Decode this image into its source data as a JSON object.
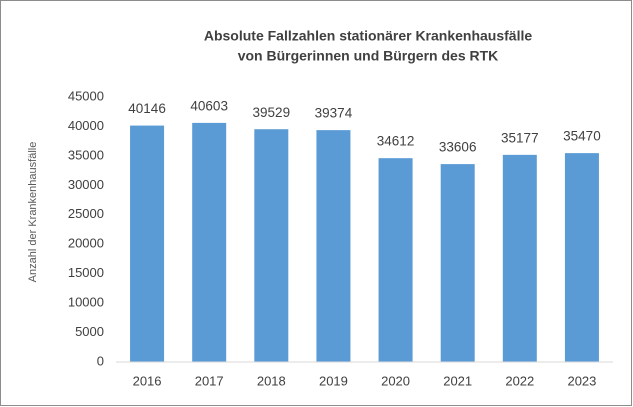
{
  "chart_data": {
    "type": "bar",
    "title": [
      "Absolute Fallzahlen stationärer Krankenhausfälle",
      "von Bürgerinnen und Bürgern des RTK"
    ],
    "y_label": "Anzahl der Krankenhausfälle",
    "categories": [
      "2016",
      "2017",
      "2018",
      "2019",
      "2020",
      "2021",
      "2022",
      "2023"
    ],
    "values": [
      40146,
      40603,
      39529,
      39374,
      34612,
      33606,
      35177,
      35470
    ],
    "color": "#5b9bd5",
    "ylim": [
      0,
      45000
    ],
    "yticks": [
      0,
      5000,
      10000,
      15000,
      20000,
      25000,
      30000,
      35000,
      40000,
      45000
    ],
    "grid": false,
    "data_labels": true
  }
}
